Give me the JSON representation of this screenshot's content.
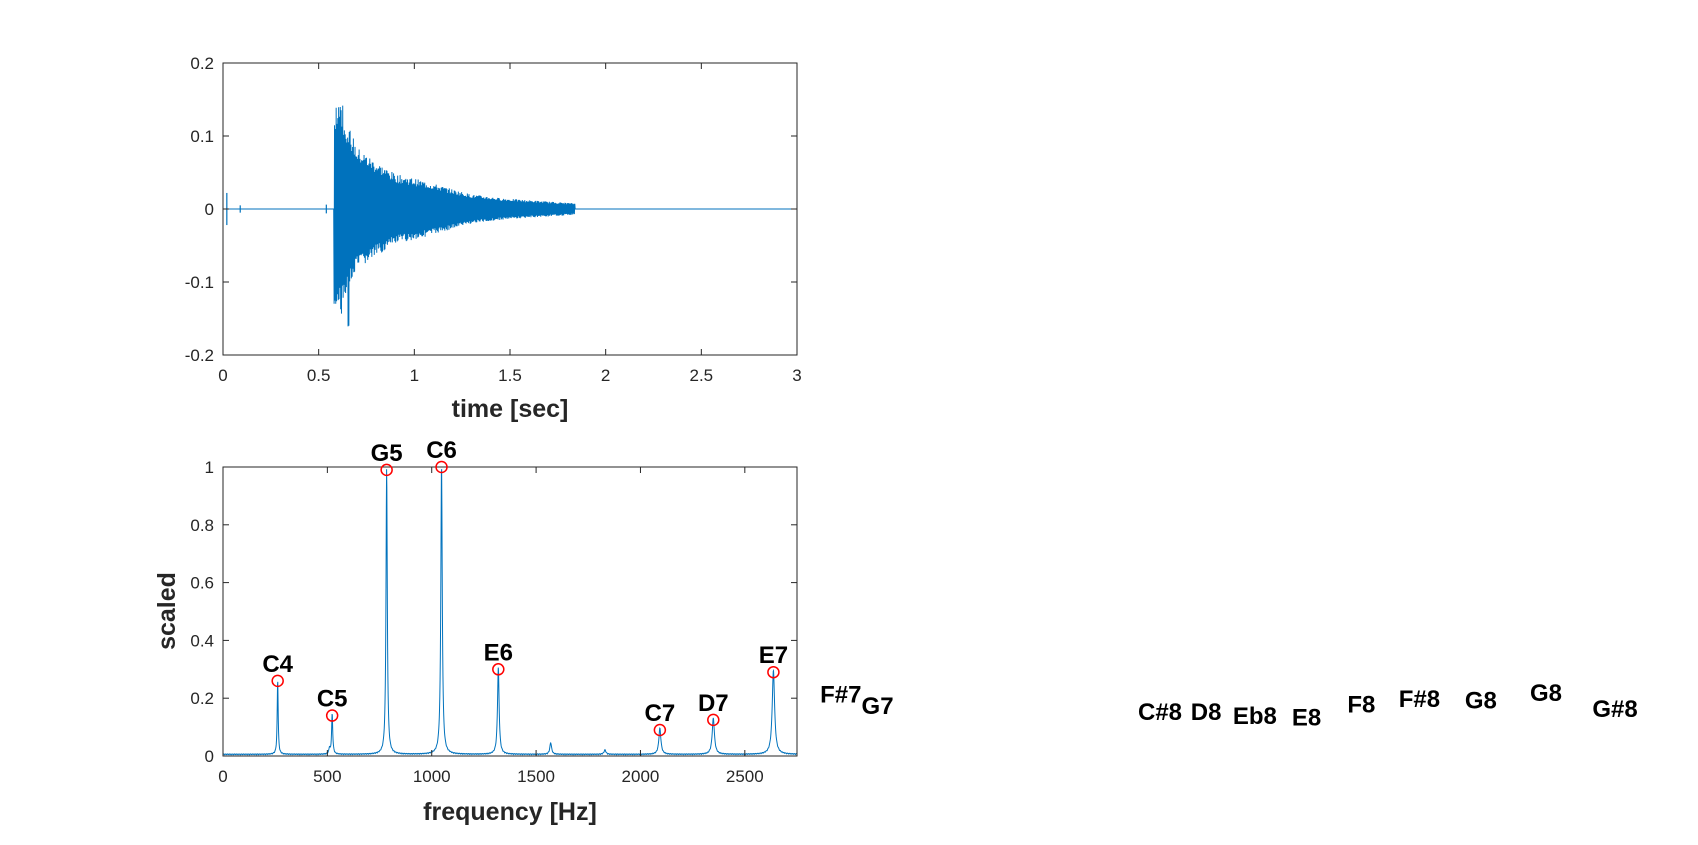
{
  "chart_data": [
    {
      "type": "line",
      "title": "",
      "xlabel": "time [sec]",
      "ylabel": "",
      "xlim": [
        0,
        3
      ],
      "ylim": [
        -0.2,
        0.2
      ],
      "xticks": [
        0,
        0.5,
        1,
        1.5,
        2,
        2.5,
        3
      ],
      "xtick_labels": [
        "0",
        "0.5",
        "1",
        "1.5",
        "2",
        "2.5",
        "3"
      ],
      "yticks": [
        -0.2,
        -0.1,
        0,
        0.1,
        0.2
      ],
      "ytick_labels": [
        "-0.2",
        "-0.1",
        "0",
        "0.1",
        "0.2"
      ],
      "grid": false,
      "line_color": "#0072bd",
      "series": [
        {
          "onset_sec": 0.58,
          "peak_amplitude": [
            -0.165,
            0.147
          ],
          "decay_envelope": [
            [
              0.58,
              0.14
            ],
            [
              0.62,
              0.14
            ],
            [
              0.7,
              0.085
            ],
            [
              0.8,
              0.065
            ],
            [
              0.9,
              0.048
            ],
            [
              1.0,
              0.042
            ],
            [
              1.1,
              0.035
            ],
            [
              1.2,
              0.027
            ],
            [
              1.3,
              0.02
            ],
            [
              1.45,
              0.015
            ],
            [
              1.6,
              0.012
            ],
            [
              1.83,
              0.008
            ]
          ],
          "end_sec": 1.84
        }
      ]
    },
    {
      "type": "line",
      "title": "",
      "xlabel": "frequency [Hz]",
      "ylabel": "scaled",
      "xlim": [
        0,
        2750
      ],
      "ylim": [
        0,
        1
      ],
      "xticks": [
        0,
        500,
        1000,
        1500,
        2000,
        2500
      ],
      "xtick_labels": [
        "0",
        "500",
        "1000",
        "1500",
        "2000",
        "2500"
      ],
      "yticks": [
        0,
        0.2,
        0.4,
        0.6,
        0.8,
        1
      ],
      "ytick_labels": [
        "0",
        "0.2",
        "0.4",
        "0.6",
        "0.8",
        "1"
      ],
      "grid": false,
      "line_color": "#0072bd",
      "marker_color": "#ff0000",
      "peaks": [
        {
          "note": "C4",
          "x": 262,
          "y": 0.26
        },
        {
          "note": "C5",
          "x": 523,
          "y": 0.14
        },
        {
          "note": "G5",
          "x": 784,
          "y": 0.99
        },
        {
          "note": "C6",
          "x": 1047,
          "y": 1.0
        },
        {
          "note": "E6",
          "x": 1319,
          "y": 0.3
        },
        {
          "note": "C7",
          "x": 2093,
          "y": 0.09
        },
        {
          "note": "D7",
          "x": 2349,
          "y": 0.125
        },
        {
          "note": "E7",
          "x": 2637,
          "y": 0.29
        }
      ],
      "minor_peaks": [
        {
          "x": 1570,
          "y": 0.04
        },
        {
          "x": 1830,
          "y": 0.015
        },
        {
          "x": 510,
          "y": 0.02
        }
      ],
      "offscale_labels": [
        {
          "note": "F#7",
          "x": 2960,
          "y": 0.185
        },
        {
          "note": "G7",
          "x": 3136,
          "y": 0.145
        },
        {
          "note": "C#8",
          "x": 4435,
          "y": 0.125
        },
        {
          "note": "D8",
          "x": 4699,
          "y": 0.125
        },
        {
          "note": "Eb8",
          "x": 4978,
          "y": 0.11
        },
        {
          "note": "E8",
          "x": 5274,
          "y": 0.105
        },
        {
          "note": "F8",
          "x": 5588,
          "y": 0.15
        },
        {
          "note": "F#8",
          "x": 5920,
          "y": 0.17
        },
        {
          "note": "G8",
          "x": 6272,
          "y": 0.165
        },
        {
          "note": "G8",
          "x": 6645,
          "y": 0.19
        },
        {
          "note": "G#8",
          "x": 7040,
          "y": 0.135
        }
      ]
    }
  ]
}
